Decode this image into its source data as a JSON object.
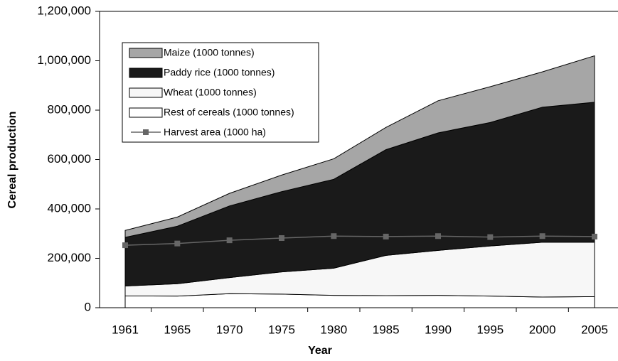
{
  "chart_data": {
    "type": "stacked_area",
    "xlabel": "Year",
    "ylabel": "Cereal production",
    "categories": [
      "1961",
      "1965",
      "1970",
      "1975",
      "1980",
      "1985",
      "1990",
      "1995",
      "2000",
      "2005"
    ],
    "ylim": [
      0,
      1200000
    ],
    "yticks": [
      0,
      {
        "value": 200000,
        "label": "200,000"
      },
      {
        "value": 400000,
        "label": "400,000"
      },
      {
        "value": 600000,
        "label": "600,000"
      },
      {
        "value": 800000,
        "label": "800,000"
      },
      {
        "value": 1000000,
        "label": "1,000,000"
      },
      {
        "value": 1200000,
        "label": "1,200,000"
      }
    ],
    "series": [
      {
        "name": "Rest of cereals (1000 tonnes)",
        "color": "#ffffff",
        "values": [
          48000,
          47000,
          57000,
          55000,
          50000,
          49000,
          50000,
          47000,
          43000,
          45000
        ]
      },
      {
        "name": "Wheat (1000 tonnes)",
        "color": "#f7f7f7",
        "values": [
          40000,
          50000,
          65000,
          90000,
          110000,
          163000,
          182000,
          203000,
          222000,
          220000
        ]
      },
      {
        "name": "Paddy rice (1000 tonnes)",
        "color": "#1a1a1a",
        "values": [
          197000,
          233000,
          290000,
          325000,
          360000,
          428000,
          476000,
          500000,
          547000,
          567000
        ]
      },
      {
        "name": "Maize (1000 tonnes)",
        "color": "#a6a6a6",
        "values": [
          28000,
          37000,
          51000,
          67000,
          83000,
          90000,
          130000,
          145000,
          143000,
          188000
        ]
      }
    ],
    "line_series": {
      "name": "Harvest area (1000 ha)",
      "color": "#666666",
      "values": [
        253000,
        260000,
        273000,
        282000,
        290000,
        288000,
        290000,
        286000,
        290000,
        288000
      ]
    }
  }
}
